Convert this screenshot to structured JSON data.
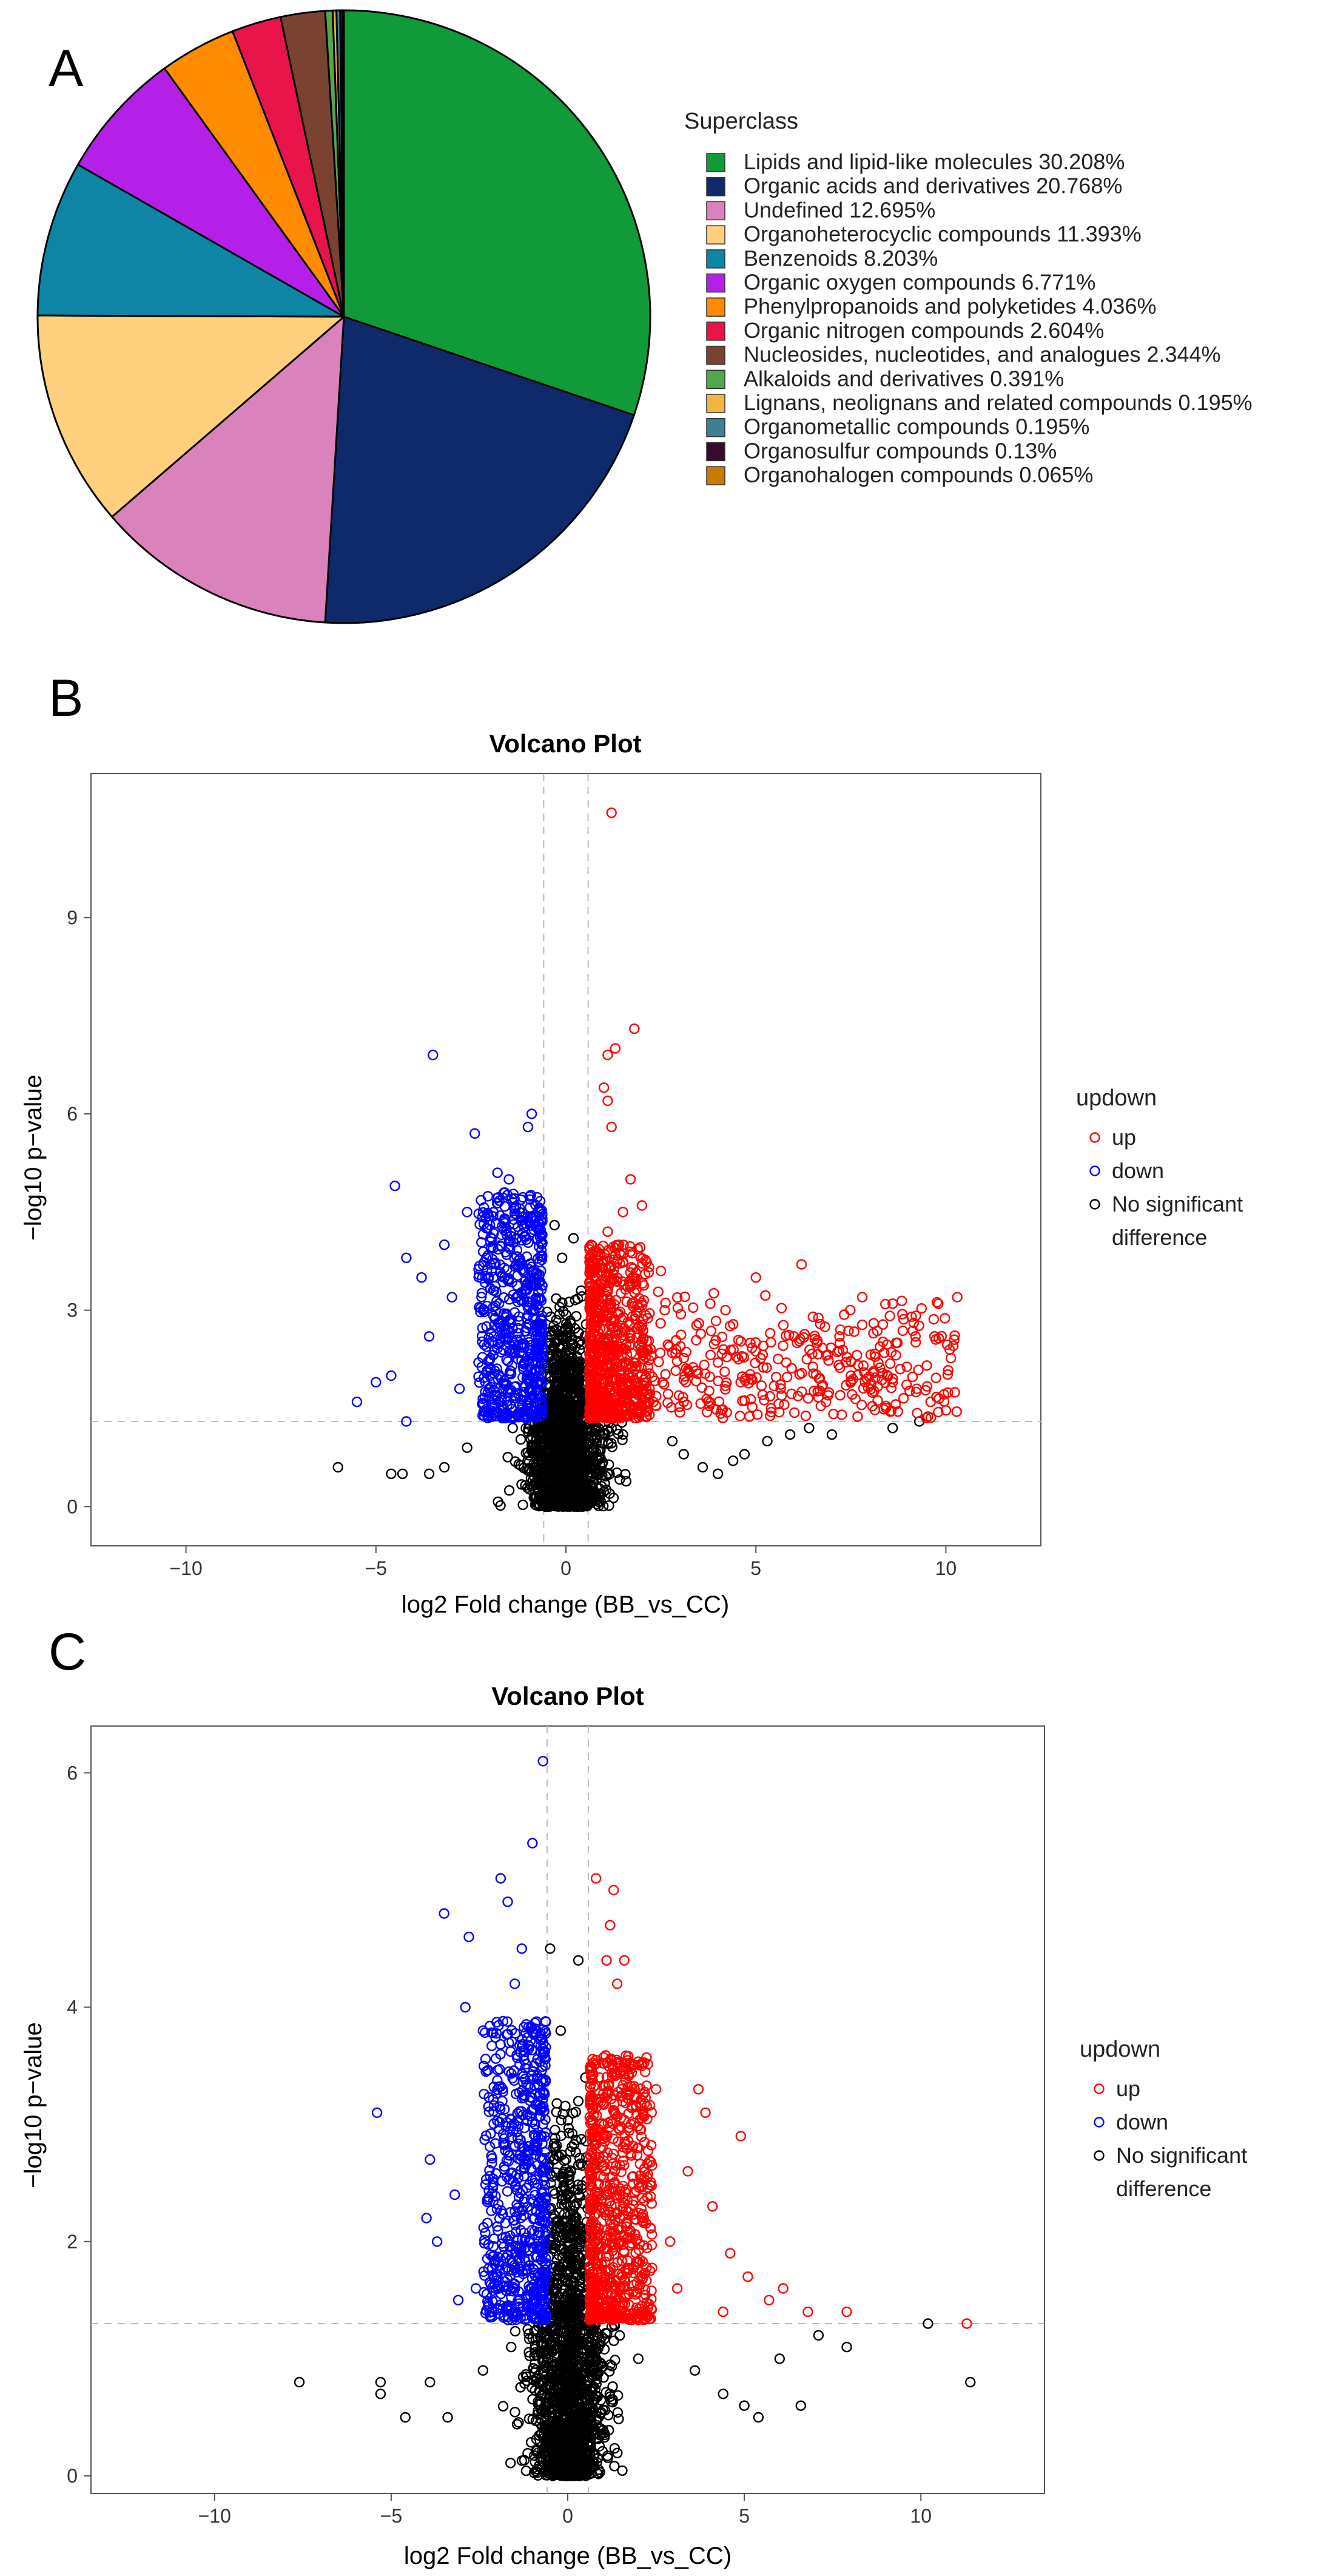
{
  "chart_data": [
    {
      "type": "pie",
      "panel": "A",
      "legend_title": "Superclass",
      "slices": [
        {
          "label": "Lipids and lipid-like molecules 30.208%",
          "value": 30.208,
          "color": "#109a3a"
        },
        {
          "label": "Organic acids and derivatives 20.768%",
          "value": 20.768,
          "color": "#0f2a6b"
        },
        {
          "label": "Undefined 12.695%",
          "value": 12.695,
          "color": "#da82bb"
        },
        {
          "label": "Organoheterocyclic compounds 11.393%",
          "value": 11.393,
          "color": "#ffd17f"
        },
        {
          "label": "Benzenoids 8.203%",
          "value": 8.203,
          "color": "#0e85a5"
        },
        {
          "label": "Organic oxygen compounds 6.771%",
          "value": 6.771,
          "color": "#b420e7"
        },
        {
          "label": "Phenylpropanoids and polyketides 4.036%",
          "value": 4.036,
          "color": "#ff8c00"
        },
        {
          "label": "Organic nitrogen compounds 2.604%",
          "value": 2.604,
          "color": "#e8144a"
        },
        {
          "label": "Nucleosides, nucleotides, and analogues 2.344%",
          "value": 2.344,
          "color": "#7a4331"
        },
        {
          "label": "Alkaloids and derivatives 0.391%",
          "value": 0.391,
          "color": "#52a64e"
        },
        {
          "label": "Lignans, neolignans and related compounds 0.195%",
          "value": 0.195,
          "color": "#f2b544"
        },
        {
          "label": "Organometallic compounds 0.195%",
          "value": 0.195,
          "color": "#3d7f94"
        },
        {
          "label": "Organosulfur compounds 0.13%",
          "value": 0.13,
          "color": "#3a0a2e"
        },
        {
          "label": "Organohalogen compounds 0.065%",
          "value": 0.065,
          "color": "#c77a00"
        }
      ]
    },
    {
      "type": "scatter",
      "panel": "B",
      "title": "Volcano Plot",
      "xlabel": "log2 Fold change (BB_vs_CC)",
      "ylabel": "−log10 p−value",
      "xlim": [
        -12.5,
        12.5
      ],
      "ylim": [
        -0.6,
        11.2
      ],
      "xticks": [
        {
          "v": -10,
          "label": "−10"
        },
        {
          "v": -5,
          "label": "−5"
        },
        {
          "v": 0,
          "label": "0"
        },
        {
          "v": 5,
          "label": "5"
        },
        {
          "v": 10,
          "label": "10"
        }
      ],
      "yticks": [
        {
          "v": 0,
          "label": "0"
        },
        {
          "v": 3,
          "label": "3"
        },
        {
          "v": 6,
          "label": "6"
        },
        {
          "v": 9,
          "label": "9"
        }
      ],
      "fc_threshold": 0.585,
      "p_threshold": 1.3,
      "legend_title": "updown",
      "legend": [
        "up",
        "down",
        "No significant",
        "difference"
      ],
      "series": [
        {
          "name": "up",
          "color": "#ff0000",
          "points": [
            [
              1.2,
              10.6
            ],
            [
              1.8,
              7.3
            ],
            [
              1.1,
              6.9
            ],
            [
              1.3,
              7.0
            ],
            [
              1.0,
              6.4
            ],
            [
              1.1,
              6.2
            ],
            [
              1.2,
              5.8
            ],
            [
              1.7,
              5.0
            ],
            [
              2.0,
              4.6
            ],
            [
              1.5,
              4.5
            ],
            [
              1.1,
              4.2
            ],
            [
              1.4,
              4.0
            ],
            [
              2.5,
              3.6
            ],
            [
              6.2,
              3.7
            ],
            [
              7.8,
              3.2
            ],
            [
              9.8,
              3.1
            ],
            [
              10.3,
              3.2
            ],
            [
              8.6,
              3.1
            ],
            [
              9.2,
              2.6
            ],
            [
              8.8,
              2.1
            ],
            [
              8.6,
              1.9
            ],
            [
              9.6,
              1.6
            ],
            [
              5.0,
              3.5
            ],
            [
              4.2,
              3.0
            ],
            [
              3.5,
              2.8
            ],
            [
              2.9,
              2.4
            ],
            [
              6.5,
              2.9
            ],
            [
              7.2,
              2.6
            ],
            [
              5.8,
              2.2
            ],
            [
              4.6,
              1.9
            ],
            [
              3.1,
              1.6
            ],
            [
              2.2,
              1.8
            ],
            [
              8.1,
              2.8
            ],
            [
              6.9,
              1.7
            ],
            [
              5.4,
              1.5
            ],
            [
              4.0,
              2.2
            ],
            [
              3.8,
              3.1
            ],
            [
              2.6,
              3.0
            ],
            [
              9.1,
              2.9
            ],
            [
              10.1,
              2.4
            ],
            [
              6.0,
              2.6
            ],
            [
              7.5,
              2.0
            ]
          ],
          "cloud": {
            "xmin": 0.62,
            "xmax": 2.2,
            "ymin": 1.35,
            "ymax": 4.0
          }
        },
        {
          "name": "down",
          "color": "#0000ff",
          "points": [
            [
              -3.5,
              6.9
            ],
            [
              -0.9,
              6.0
            ],
            [
              -1.0,
              5.8
            ],
            [
              -2.4,
              5.7
            ],
            [
              -4.5,
              4.9
            ],
            [
              -1.8,
              5.1
            ],
            [
              -1.5,
              5.0
            ],
            [
              -4.2,
              3.8
            ],
            [
              -3.8,
              3.5
            ],
            [
              -4.6,
              2.0
            ],
            [
              -5.0,
              1.9
            ],
            [
              -5.5,
              1.6
            ],
            [
              -4.2,
              1.3
            ],
            [
              -3.6,
              2.6
            ],
            [
              -3.0,
              3.2
            ],
            [
              -2.6,
              4.5
            ],
            [
              -2.8,
              1.8
            ],
            [
              -2.3,
              2.2
            ],
            [
              -3.2,
              4.0
            ],
            [
              -2.0,
              4.3
            ]
          ],
          "cloud": {
            "xmin": -2.3,
            "xmax": -0.62,
            "ymin": 1.35,
            "ymax": 4.8
          }
        },
        {
          "name": "No significant difference",
          "color": "#000000",
          "points": [
            [
              -6.0,
              0.6
            ],
            [
              -4.6,
              0.5
            ],
            [
              -4.3,
              0.5
            ],
            [
              -3.6,
              0.5
            ],
            [
              -3.2,
              0.6
            ],
            [
              3.6,
              0.6
            ],
            [
              4.4,
              0.7
            ],
            [
              4.7,
              0.8
            ],
            [
              5.3,
              1.0
            ],
            [
              5.9,
              1.1
            ],
            [
              6.4,
              1.2
            ],
            [
              7.0,
              1.1
            ],
            [
              8.6,
              1.2
            ],
            [
              9.3,
              1.3
            ],
            [
              -0.3,
              4.3
            ],
            [
              0.2,
              4.1
            ],
            [
              -0.1,
              3.8
            ],
            [
              0.4,
              3.3
            ],
            [
              -0.4,
              2.9
            ],
            [
              0.1,
              2.6
            ],
            [
              -1.4,
              1.2
            ],
            [
              1.5,
              1.1
            ],
            [
              2.8,
              1.0
            ],
            [
              -2.6,
              0.9
            ],
            [
              4.0,
              0.5
            ],
            [
              3.1,
              0.8
            ]
          ],
          "cloud": {
            "xspread": 1.8,
            "ymax": 1.3
          }
        }
      ]
    },
    {
      "type": "scatter",
      "panel": "C",
      "title": "Volcano Plot",
      "xlabel": "log2 Fold change (BB_vs_CC)",
      "ylabel": "−log10 p−value",
      "xlim": [
        -13.5,
        13.5
      ],
      "ylim": [
        -0.15,
        6.4
      ],
      "xticks": [
        {
          "v": -10,
          "label": "−10"
        },
        {
          "v": -5,
          "label": "−5"
        },
        {
          "v": 0,
          "label": "0"
        },
        {
          "v": 5,
          "label": "5"
        },
        {
          "v": 10,
          "label": "10"
        }
      ],
      "yticks": [
        {
          "v": 0,
          "label": "0"
        },
        {
          "v": 2,
          "label": "2"
        },
        {
          "v": 4,
          "label": "4"
        },
        {
          "v": 6,
          "label": "6"
        }
      ],
      "fc_threshold": 0.585,
      "p_threshold": 1.3,
      "legend_title": "updown",
      "legend": [
        "up",
        "down",
        "No significant",
        "difference"
      ],
      "series": [
        {
          "name": "up",
          "color": "#ff0000",
          "points": [
            [
              0.8,
              5.1
            ],
            [
              1.3,
              5.0
            ],
            [
              1.2,
              4.7
            ],
            [
              1.6,
              4.4
            ],
            [
              1.1,
              4.4
            ],
            [
              1.4,
              4.2
            ],
            [
              2.1,
              3.5
            ],
            [
              2.5,
              3.3
            ],
            [
              3.7,
              3.3
            ],
            [
              3.9,
              3.1
            ],
            [
              4.9,
              2.9
            ],
            [
              3.4,
              2.6
            ],
            [
              4.1,
              2.3
            ],
            [
              4.6,
              1.9
            ],
            [
              5.1,
              1.7
            ],
            [
              6.1,
              1.6
            ],
            [
              6.8,
              1.4
            ],
            [
              7.9,
              1.4
            ],
            [
              11.3,
              1.3
            ],
            [
              2.9,
              2.0
            ],
            [
              3.1,
              1.6
            ],
            [
              2.0,
              2.8
            ],
            [
              4.4,
              1.4
            ],
            [
              5.7,
              1.5
            ]
          ],
          "cloud": {
            "xmin": 0.62,
            "xmax": 2.4,
            "ymin": 1.33,
            "ymax": 3.6
          }
        },
        {
          "name": "down",
          "color": "#0000ff",
          "points": [
            [
              -0.7,
              6.1
            ],
            [
              -1.0,
              5.4
            ],
            [
              -1.9,
              5.1
            ],
            [
              -3.5,
              4.8
            ],
            [
              -2.8,
              4.6
            ],
            [
              -1.7,
              4.9
            ],
            [
              -1.3,
              4.5
            ],
            [
              -2.9,
              4.0
            ],
            [
              -2.4,
              3.8
            ],
            [
              -3.9,
              2.7
            ],
            [
              -3.2,
              2.4
            ],
            [
              -5.4,
              3.1
            ],
            [
              -4.0,
              2.2
            ],
            [
              -3.7,
              2.0
            ],
            [
              -2.6,
              1.6
            ],
            [
              -3.1,
              1.5
            ],
            [
              -1.5,
              4.2
            ]
          ],
          "cloud": {
            "xmin": -2.4,
            "xmax": -0.62,
            "ymin": 1.33,
            "ymax": 3.9
          }
        },
        {
          "name": "No significant difference",
          "color": "#000000",
          "points": [
            [
              -7.6,
              0.8
            ],
            [
              -5.3,
              0.8
            ],
            [
              -5.3,
              0.7
            ],
            [
              -4.6,
              0.5
            ],
            [
              -3.4,
              0.5
            ],
            [
              -3.9,
              0.8
            ],
            [
              4.4,
              0.7
            ],
            [
              5.0,
              0.6
            ],
            [
              5.4,
              0.5
            ],
            [
              6.6,
              0.6
            ],
            [
              7.1,
              1.2
            ],
            [
              7.9,
              1.1
            ],
            [
              10.2,
              1.3
            ],
            [
              11.4,
              0.8
            ],
            [
              -0.5,
              4.5
            ],
            [
              0.3,
              4.4
            ],
            [
              -0.2,
              3.8
            ],
            [
              0.5,
              3.4
            ],
            [
              -0.4,
              2.7
            ],
            [
              0.2,
              2.3
            ],
            [
              -1.6,
              1.1
            ],
            [
              2.0,
              1.0
            ],
            [
              3.6,
              0.9
            ],
            [
              -2.4,
              0.9
            ],
            [
              6.0,
              1.0
            ]
          ],
          "cloud": {
            "xspread": 2.0,
            "ymax": 1.3
          }
        }
      ]
    }
  ],
  "panels": {
    "a": {
      "letter": "A"
    },
    "b": {
      "letter": "B"
    },
    "c": {
      "letter": "C"
    }
  },
  "colors": {
    "grid_dash": "#bbbbbb",
    "axis": "#555555"
  }
}
